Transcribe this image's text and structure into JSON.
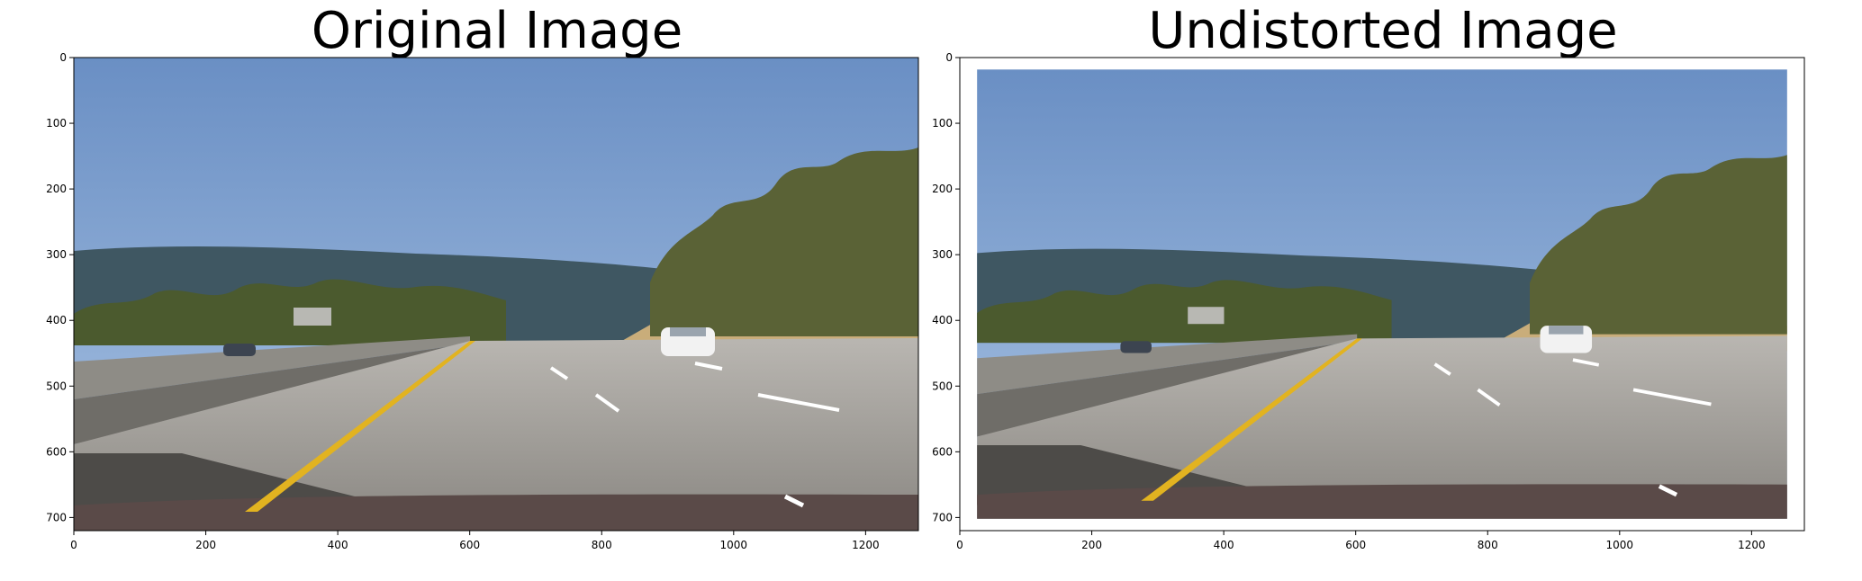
{
  "figure": {
    "panels": [
      {
        "title": "Original Image"
      },
      {
        "title": "Undistorted Image"
      }
    ],
    "x_ticks": [
      "0",
      "200",
      "400",
      "600",
      "800",
      "1000",
      "1200"
    ],
    "y_ticks": [
      "0",
      "100",
      "200",
      "300",
      "400",
      "500",
      "600",
      "700"
    ],
    "image_size": [
      1280,
      720
    ]
  }
}
